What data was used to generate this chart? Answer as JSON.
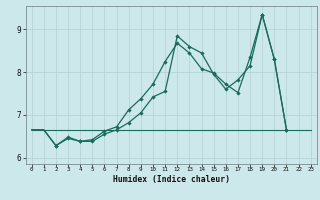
{
  "xlabel": "Humidex (Indice chaleur)",
  "bg_color": "#cce8ea",
  "grid_color": "#b0d0d3",
  "line_color": "#1a6b5a",
  "xlim": [
    -0.5,
    23.5
  ],
  "ylim": [
    5.85,
    9.55
  ],
  "yticks": [
    6,
    7,
    8,
    9
  ],
  "xticks": [
    0,
    1,
    2,
    3,
    4,
    5,
    6,
    7,
    8,
    9,
    10,
    11,
    12,
    13,
    14,
    15,
    16,
    17,
    18,
    19,
    20,
    21,
    22,
    23
  ],
  "line1_x": [
    0,
    1,
    2,
    3,
    4,
    5,
    6,
    7,
    8,
    9,
    10,
    11,
    12,
    13,
    14,
    15,
    16,
    17,
    18,
    19,
    20,
    21
  ],
  "line1_y": [
    6.65,
    6.65,
    6.28,
    6.45,
    6.38,
    6.38,
    6.55,
    6.65,
    6.82,
    7.05,
    7.42,
    7.55,
    8.85,
    8.6,
    8.45,
    7.95,
    7.6,
    7.82,
    8.15,
    9.35,
    8.3,
    6.65
  ],
  "line2_x": [
    0,
    1,
    2,
    3,
    4,
    5,
    6,
    7,
    8,
    9,
    10,
    11,
    12,
    13,
    14,
    15,
    16,
    17,
    18,
    19,
    20,
    21
  ],
  "line2_y": [
    6.65,
    6.65,
    6.28,
    6.48,
    6.38,
    6.42,
    6.62,
    6.72,
    7.12,
    7.38,
    7.72,
    8.25,
    8.68,
    8.45,
    8.08,
    7.98,
    7.72,
    7.52,
    8.35,
    9.35,
    8.3,
    6.65
  ],
  "line3_x": [
    0,
    21,
    22,
    23
  ],
  "line3_y": [
    6.65,
    6.65,
    6.65,
    6.65
  ],
  "marker1_x": [
    2,
    3,
    4,
    5,
    6,
    7,
    8,
    9,
    10,
    11,
    12,
    13,
    14,
    15,
    16,
    17,
    18,
    19,
    20,
    21
  ],
  "marker1_y": [
    6.28,
    6.45,
    6.38,
    6.38,
    6.55,
    6.65,
    6.82,
    7.05,
    7.42,
    7.55,
    8.85,
    8.6,
    8.45,
    7.95,
    7.6,
    7.82,
    8.15,
    9.35,
    8.3,
    6.65
  ],
  "marker2_x": [
    2,
    3,
    4,
    5,
    6,
    7,
    8,
    9,
    10,
    11,
    12,
    13,
    14,
    15,
    16,
    17,
    18,
    19,
    20,
    21
  ],
  "marker2_y": [
    6.28,
    6.48,
    6.38,
    6.42,
    6.62,
    6.72,
    7.12,
    7.38,
    7.72,
    8.25,
    8.68,
    8.45,
    8.08,
    7.98,
    7.72,
    7.52,
    8.35,
    9.35,
    8.3,
    6.65
  ]
}
